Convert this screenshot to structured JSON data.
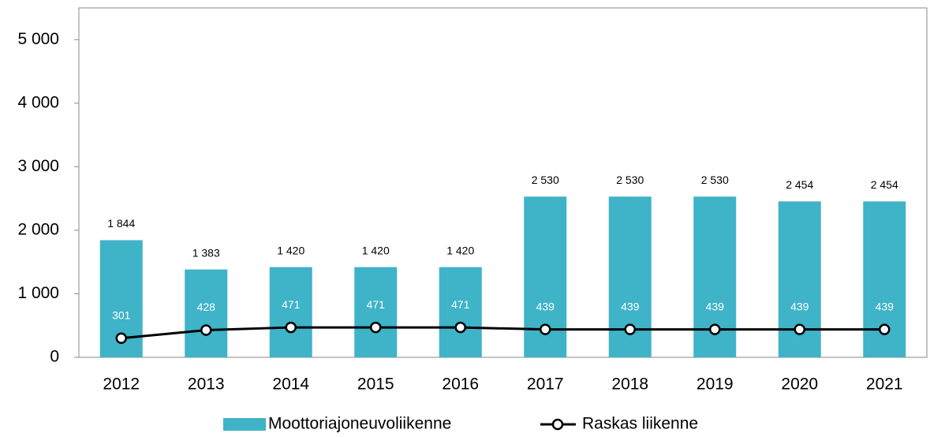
{
  "chart_data": {
    "type": "bar",
    "categories": [
      "2012",
      "2013",
      "2014",
      "2015",
      "2016",
      "2017",
      "2018",
      "2019",
      "2020",
      "2021"
    ],
    "series": [
      {
        "name": "Moottoriajoneuvoliikenne",
        "type": "bar",
        "color": "#3fb3c8",
        "values": [
          1844,
          1383,
          1420,
          1420,
          1420,
          2530,
          2530,
          2530,
          2454,
          2454
        ],
        "value_labels": [
          "1 844",
          "1 383",
          "1 420",
          "1 420",
          "1 420",
          "2 530",
          "2 530",
          "2 530",
          "2 454",
          "2 454"
        ]
      },
      {
        "name": "Raskas liikenne",
        "type": "line",
        "color": "#000000",
        "values": [
          301,
          428,
          471,
          471,
          471,
          439,
          439,
          439,
          439,
          439
        ]
      }
    ],
    "ylim": [
      0,
      5500
    ],
    "yticks": [
      0,
      {
        "value": 1000,
        "label": "1 000"
      },
      {
        "value": 2000,
        "label": "2 000"
      },
      {
        "value": 3000,
        "label": "3 000"
      },
      {
        "value": 4000,
        "label": "4 000"
      },
      {
        "value": 5000,
        "label": "5 000"
      }
    ],
    "legend": "bottom"
  }
}
